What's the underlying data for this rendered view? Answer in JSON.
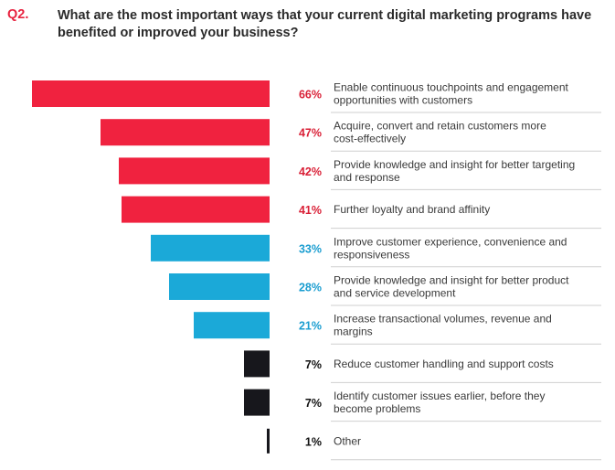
{
  "question": {
    "number": "Q2.",
    "text": "What are the most important ways that your current digital marketing programs have benefited or improved your business?"
  },
  "colors": {
    "red": "#f0223f",
    "blue": "#1ba9d8",
    "black": "#17171c",
    "red_text": "#d91f36",
    "blue_text": "#1a9dd0",
    "black_text": "#111111"
  },
  "chart_data": {
    "type": "bar",
    "orientation": "horizontal",
    "title": "What are the most important ways that your current digital marketing programs have benefited or improved your business?",
    "unit": "%",
    "categories": [
      [
        "Enable continuous touchpoints and engagement",
        "opportunities with customers"
      ],
      [
        "Acquire, convert and retain customers more",
        "cost-effectively"
      ],
      [
        "Provide knowledge and insight for better targeting",
        "and response"
      ],
      [
        "Further loyalty and brand affinity"
      ],
      [
        "Improve customer experience, convenience and",
        "responsiveness"
      ],
      [
        "Provide knowledge and insight for better product",
        "and service development"
      ],
      [
        "Increase transactional volumes, revenue and",
        "margins"
      ],
      [
        "Reduce customer handling and support costs"
      ],
      [
        "Identify customer issues earlier, before they",
        "become problems"
      ],
      [
        "Other"
      ]
    ],
    "values": [
      66,
      47,
      42,
      41,
      33,
      28,
      21,
      7,
      7,
      1
    ],
    "value_labels": [
      "66%",
      "47%",
      "42%",
      "41%",
      "33%",
      "28%",
      "21%",
      "7%",
      "7%",
      "1%"
    ],
    "groups": [
      "red",
      "red",
      "red",
      "red",
      "blue",
      "blue",
      "blue",
      "black",
      "black",
      "black"
    ]
  }
}
